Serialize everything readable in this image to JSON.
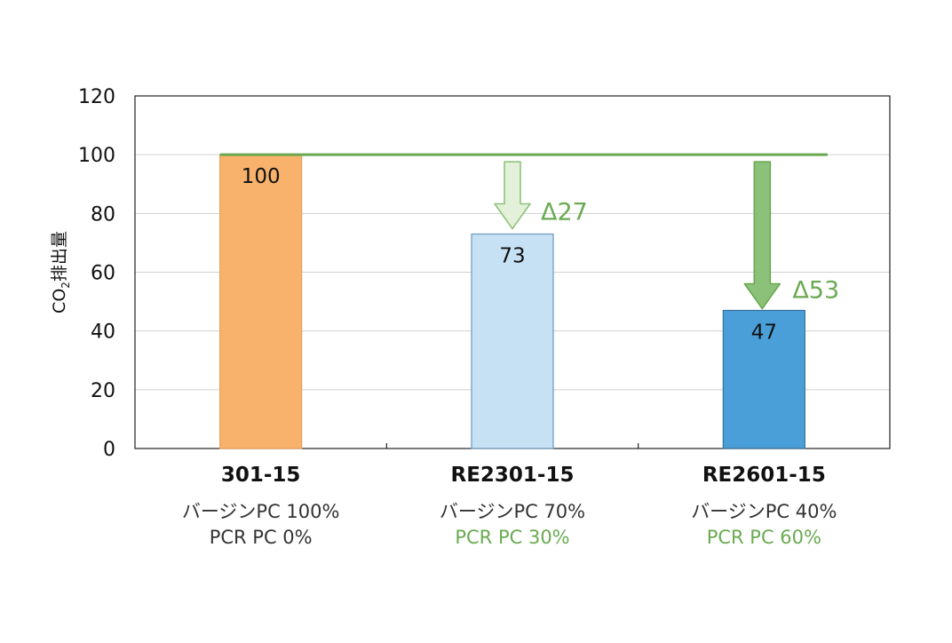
{
  "chart_data": {
    "type": "bar",
    "ylabel_main": "CO",
    "ylabel_sub": "2",
    "ylabel_rest": "排出量",
    "ylim": [
      0,
      120
    ],
    "yticks": [
      0,
      20,
      40,
      60,
      80,
      100,
      120
    ],
    "grid": true,
    "baseline_value": 100,
    "categories": [
      "301-15",
      "RE2301-15",
      "RE2601-15"
    ],
    "values": [
      100,
      73,
      47
    ],
    "value_labels": [
      "100",
      "73",
      "47"
    ],
    "bar_colors": [
      "#f8b26c",
      "#c6e1f4",
      "#4a9fd8"
    ],
    "bar_edge_colors": [
      "#e6a060",
      "#6f97b8",
      "#3b6f98"
    ],
    "subtitles": [
      [
        "バージンPC 100%",
        "PCR PC 0%"
      ],
      [
        "バージンPC 70%",
        "PCR PC 30%"
      ],
      [
        "バージンPC 40%",
        "PCR PC 60%"
      ]
    ],
    "subtitle_colors": [
      [
        "#333333",
        "#333333"
      ],
      [
        "#333333",
        "#6aaa52"
      ],
      [
        "#333333",
        "#6aaa52"
      ]
    ],
    "reductions": [
      {
        "category": "RE2301-15",
        "label": "Δ27",
        "value": 27
      },
      {
        "category": "RE2601-15",
        "label": "Δ53",
        "value": 53
      }
    ],
    "colors": {
      "baseline": "#6aa84f",
      "delta_text": "#6aaa52",
      "arrow_light_fill": "#e4f1da",
      "arrow_light_edge": "#8fc27a",
      "arrow_dark_fill": "#8cc17a",
      "arrow_dark_edge": "#6aa84f",
      "grid": "#d0d0d0",
      "axis": "#222222"
    }
  }
}
